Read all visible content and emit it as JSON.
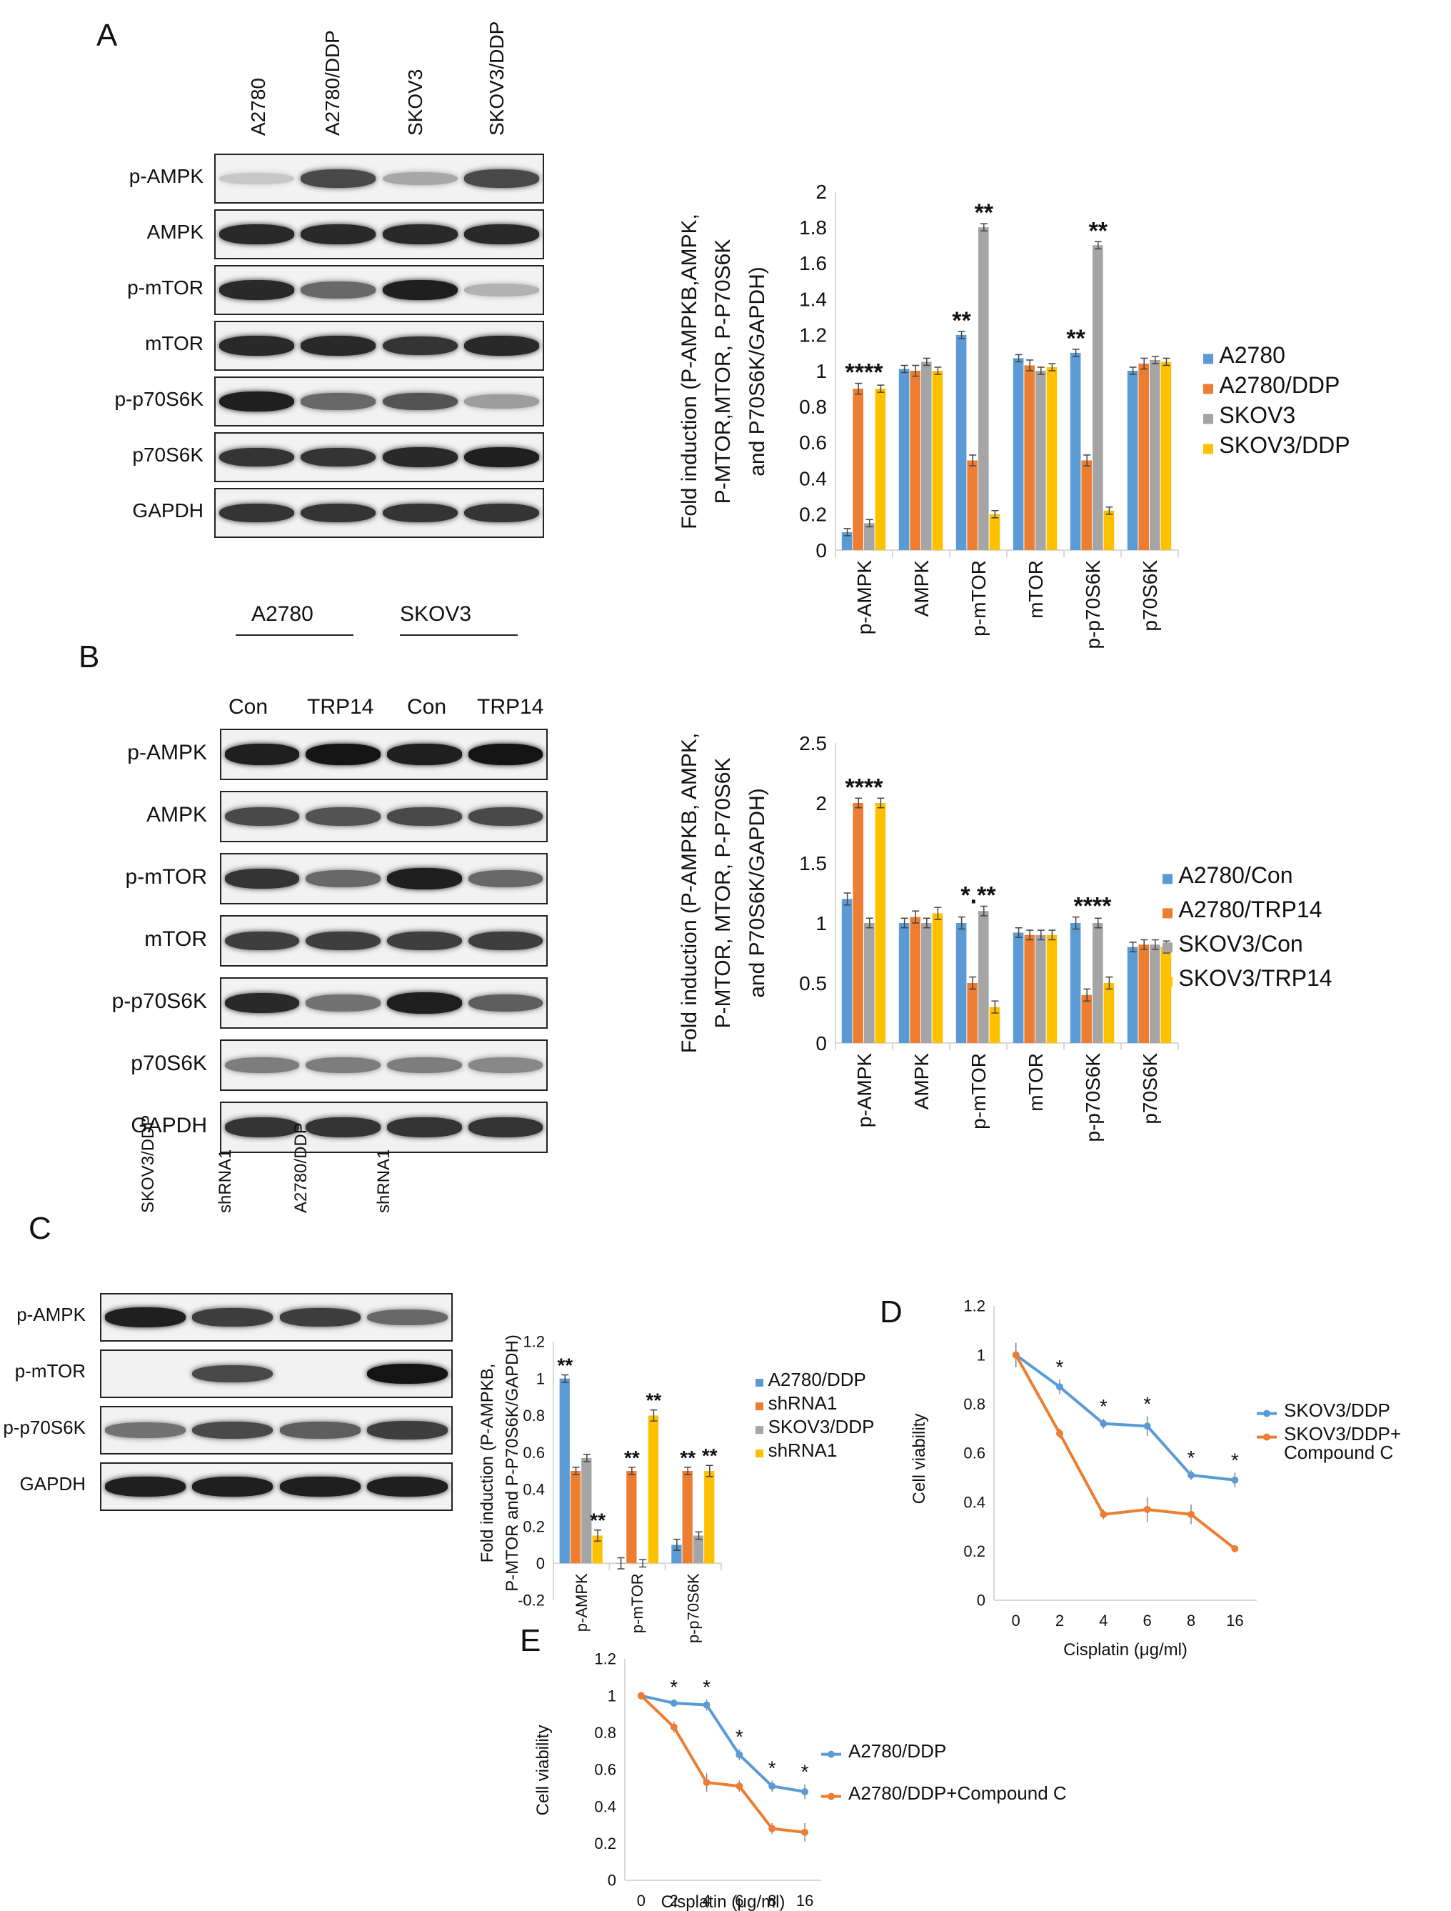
{
  "colors": {
    "blue": "#5b9bd5",
    "orange": "#ed7d31",
    "gray": "#a5a5a5",
    "yellow": "#ffc000"
  },
  "panelA": {
    "letter": "A",
    "columns": [
      "A2780",
      "A2780/DDP",
      "SKOV3",
      "SKOV3/DDP"
    ],
    "rows": [
      "p-AMPK",
      "AMPK",
      "p-mTOR",
      "mTOR",
      "p-p70S6K",
      "p70S6K",
      "GAPDH"
    ]
  },
  "panelB": {
    "letter": "B",
    "groups": [
      "A2780",
      "SKOV3"
    ],
    "columns": [
      "Con",
      "TRP14",
      "Con",
      "TRP14"
    ],
    "rows": [
      "p-AMPK",
      "AMPK",
      "p-mTOR",
      "mTOR",
      "p-p70S6K",
      "p70S6K",
      "GAPDH"
    ]
  },
  "panelC": {
    "letter": "C",
    "columns": [
      "SKOV3/DDP",
      "shRNA1",
      "A2780/DDP",
      "shRNA1"
    ],
    "rows": [
      "p-AMPK",
      "p-mTOR",
      "p-p70S6K",
      "GAPDH"
    ]
  },
  "panelD": {
    "letter": "D"
  },
  "panelE": {
    "letter": "E"
  },
  "chart_data": [
    {
      "id": "A",
      "type": "bar",
      "ylabel": [
        "Fold induction (P-AMPKB,AMPK,",
        "P-MTOR,MTOR, P-P70S6K",
        "and P70S6K/GAPDH)"
      ],
      "ylim": [
        0,
        2
      ],
      "yticks": [
        "0",
        "0.2",
        "0.4",
        "0.6",
        "0.8",
        "1",
        "1.2",
        "1.4",
        "1.6",
        "1.8",
        "2"
      ],
      "categories": [
        "p-AMPK",
        "AMPK",
        "p-mTOR",
        "mTOR",
        "p-p70S6K",
        "p70S6K"
      ],
      "series": [
        {
          "name": "A2780",
          "color": "#5b9bd5",
          "values": [
            0.1,
            1.01,
            1.2,
            1.07,
            1.1,
            1.0
          ],
          "err": [
            0.02,
            0.02,
            0.02,
            0.02,
            0.02,
            0.02
          ]
        },
        {
          "name": "A2780/DDP",
          "color": "#ed7d31",
          "values": [
            0.9,
            1.0,
            0.5,
            1.03,
            0.5,
            1.04
          ],
          "err": [
            0.03,
            0.03,
            0.03,
            0.03,
            0.03,
            0.03
          ]
        },
        {
          "name": "SKOV3",
          "color": "#a5a5a5",
          "values": [
            0.15,
            1.05,
            1.8,
            1.0,
            1.7,
            1.06
          ],
          "err": [
            0.02,
            0.02,
            0.02,
            0.02,
            0.02,
            0.02
          ]
        },
        {
          "name": "SKOV3/DDP",
          "color": "#ffc000",
          "values": [
            0.9,
            1.0,
            0.2,
            1.02,
            0.22,
            1.05
          ],
          "err": [
            0.02,
            0.02,
            0.02,
            0.02,
            0.02,
            0.02
          ]
        }
      ],
      "annotations": [
        {
          "category": 0,
          "text": "****"
        },
        {
          "category": 2,
          "series": 0,
          "text": "**"
        },
        {
          "category": 2,
          "series": 2,
          "text": "**"
        },
        {
          "category": 4,
          "series": 0,
          "text": "**"
        },
        {
          "category": 4,
          "series": 2,
          "text": "**"
        }
      ],
      "legend": "right"
    },
    {
      "id": "B",
      "type": "bar",
      "ylabel": [
        "Fold induction (P-AMPKB, AMPK,",
        "P-MTOR, MTOR, P-P70S6K",
        "and P70S6K/GAPDH)"
      ],
      "ylim": [
        0,
        2.5
      ],
      "yticks": [
        "0",
        "0.5",
        "1",
        "1.5",
        "2",
        "2.5"
      ],
      "categories": [
        "p-AMPK",
        "AMPK",
        "p-mTOR",
        "mTOR",
        "p-p70S6K",
        "p70S6K"
      ],
      "series": [
        {
          "name": "A2780/Con",
          "color": "#5b9bd5",
          "values": [
            1.2,
            1.0,
            1.0,
            0.92,
            1.0,
            0.8
          ],
          "err": [
            0.05,
            0.04,
            0.05,
            0.04,
            0.05,
            0.04
          ]
        },
        {
          "name": "A2780/TRP14",
          "color": "#ed7d31",
          "values": [
            2.0,
            1.05,
            0.5,
            0.9,
            0.4,
            0.82
          ],
          "err": [
            0.04,
            0.05,
            0.05,
            0.04,
            0.05,
            0.04
          ]
        },
        {
          "name": "SKOV3/Con",
          "color": "#a5a5a5",
          "values": [
            1.0,
            1.0,
            1.1,
            0.9,
            1.0,
            0.82
          ],
          "err": [
            0.04,
            0.04,
            0.04,
            0.04,
            0.04,
            0.04
          ]
        },
        {
          "name": "SKOV3/TRP14",
          "color": "#ffc000",
          "values": [
            2.0,
            1.08,
            0.3,
            0.9,
            0.5,
            0.8
          ],
          "err": [
            0.04,
            0.05,
            0.05,
            0.04,
            0.05,
            0.05
          ]
        }
      ],
      "annotations": [
        {
          "category": 0,
          "text": "****"
        },
        {
          "category": 2,
          "text": "*.**"
        },
        {
          "category": 4,
          "text": "****"
        }
      ],
      "legend": "right"
    },
    {
      "id": "C",
      "type": "bar",
      "ylabel": [
        "Fold induction (P-AMPKB,",
        "P-MTOR and P-P70S6K/GAPDH)"
      ],
      "ylim": [
        -0.2,
        1.2
      ],
      "yticks": [
        "-0.2",
        "0",
        "0.2",
        "0.4",
        "0.6",
        "0.8",
        "1",
        "1.2"
      ],
      "categories": [
        "p-AMPK",
        "p-mTOR",
        "p-p70S6K"
      ],
      "series": [
        {
          "name": "A2780/DDP",
          "color": "#5b9bd5",
          "values": [
            1.0,
            0.0,
            0.1
          ],
          "err": [
            0.02,
            0.03,
            0.03
          ]
        },
        {
          "name": "shRNA1",
          "color": "#ed7d31",
          "values": [
            0.5,
            0.5,
            0.5
          ],
          "err": [
            0.02,
            0.02,
            0.02
          ]
        },
        {
          "name": "SKOV3/DDP",
          "color": "#a5a5a5",
          "values": [
            0.57,
            0.0,
            0.15
          ],
          "err": [
            0.02,
            0.02,
            0.02
          ]
        },
        {
          "name": "shRNA1",
          "color": "#ffc000",
          "values": [
            0.15,
            0.8,
            0.5
          ],
          "err": [
            0.03,
            0.03,
            0.03
          ]
        }
      ],
      "annotations": [
        {
          "category": 0,
          "series": 0,
          "text": "**"
        },
        {
          "category": 0,
          "series": 3,
          "text": "**"
        },
        {
          "category": 1,
          "series": 1,
          "text": "**"
        },
        {
          "category": 1,
          "series": 3,
          "text": "**"
        },
        {
          "category": 2,
          "series": 1,
          "text": "**"
        },
        {
          "category": 2,
          "series": 3,
          "text": "**"
        }
      ],
      "legend": "right"
    },
    {
      "id": "D",
      "type": "line",
      "xlabel": "Cisplatin (μg/ml)",
      "ylabel": "Cell viability",
      "ylim": [
        0,
        1.2
      ],
      "yticks": [
        "0",
        "0.2",
        "0.4",
        "0.6",
        "0.8",
        "1",
        "1.2"
      ],
      "categories": [
        "0",
        "2",
        "4",
        "6",
        "8",
        "16"
      ],
      "series": [
        {
          "name": "SKOV3/DDP",
          "color": "#5b9bd5",
          "values": [
            1.0,
            0.87,
            0.72,
            0.71,
            0.51,
            0.49
          ],
          "err": [
            0.05,
            0.03,
            0.02,
            0.04,
            0.02,
            0.03
          ]
        },
        {
          "name": "SKOV3/DDP+ Compound C",
          "color": "#ed7d31",
          "values": [
            1.0,
            0.68,
            0.35,
            0.37,
            0.35,
            0.21
          ],
          "err": [
            0.05,
            0.02,
            0.02,
            0.05,
            0.04,
            0.01
          ]
        }
      ],
      "annotations": [
        {
          "category": 1,
          "text": "*"
        },
        {
          "category": 2,
          "text": "*"
        },
        {
          "category": 3,
          "text": "*"
        },
        {
          "category": 4,
          "text": "*"
        },
        {
          "category": 5,
          "text": "*"
        }
      ],
      "legend": "right"
    },
    {
      "id": "E",
      "type": "line",
      "xlabel": "Cisplatin (μg/ml)",
      "ylabel": "Cell viability",
      "ylim": [
        0,
        1.2
      ],
      "yticks": [
        "0",
        "0.2",
        "0.4",
        "0.6",
        "0.8",
        "1",
        "1.2"
      ],
      "categories": [
        "0",
        "2",
        "4",
        "6",
        "8",
        "16"
      ],
      "series": [
        {
          "name": "A2780/DDP",
          "color": "#5b9bd5",
          "values": [
            1.0,
            0.96,
            0.95,
            0.68,
            0.51,
            0.48
          ],
          "err": [
            0.02,
            0.02,
            0.03,
            0.03,
            0.03,
            0.04
          ]
        },
        {
          "name": "A2780/DDP+Compound C",
          "color": "#ed7d31",
          "values": [
            1.0,
            0.83,
            0.53,
            0.51,
            0.28,
            0.26
          ],
          "err": [
            0.02,
            0.03,
            0.05,
            0.03,
            0.03,
            0.05
          ]
        }
      ],
      "annotations": [
        {
          "category": 1,
          "text": "*"
        },
        {
          "category": 2,
          "text": "*"
        },
        {
          "category": 3,
          "text": "*"
        },
        {
          "category": 4,
          "text": "*"
        },
        {
          "category": 5,
          "text": "*"
        }
      ],
      "legend": "right"
    }
  ]
}
